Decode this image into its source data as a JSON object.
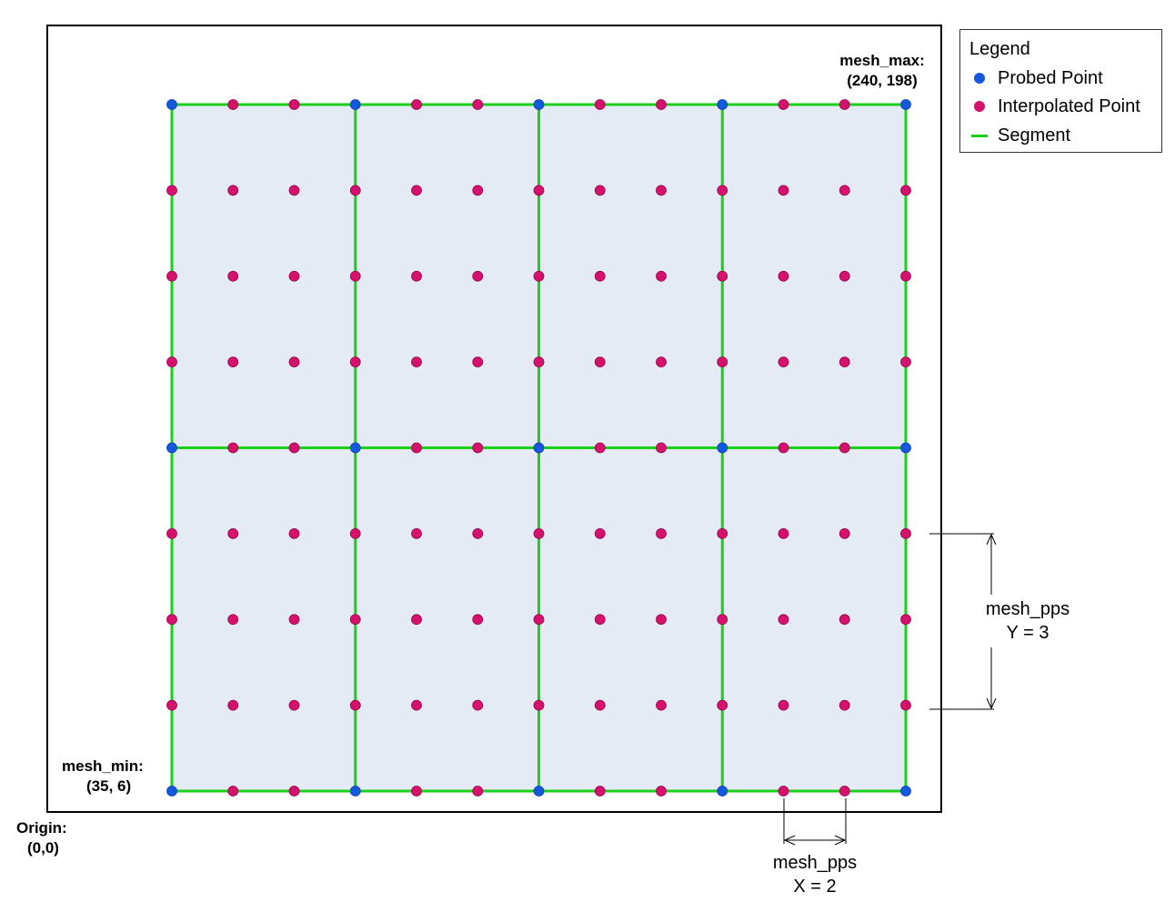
{
  "labels": {
    "mesh_max_title": "mesh_max:",
    "mesh_max_value": "(240, 198)",
    "mesh_min_title": "mesh_min:",
    "mesh_min_value": "(35, 6)",
    "origin_title": "Origin:",
    "origin_value": "(0,0)",
    "pps_y_line1": "mesh_pps",
    "pps_y_line2": "Y = 3",
    "pps_x_line1": "mesh_pps",
    "pps_x_line2": "X = 2"
  },
  "legend": {
    "title": "Legend",
    "items": [
      {
        "label": "Probed Point",
        "kind": "dot",
        "color": "#1558e0"
      },
      {
        "label": "Interpolated Point",
        "kind": "dot",
        "color": "#d6106c"
      },
      {
        "label": "Segment",
        "kind": "line",
        "color": "#1ad01a"
      }
    ]
  },
  "mesh": {
    "probed_cols": 5,
    "probed_rows": 3,
    "pps_x": 2,
    "pps_y": 3,
    "colors": {
      "probed": "#1558e0",
      "interpolated": "#d6106c",
      "segment": "#1ad01a",
      "fill": "#e5ebf5",
      "frame": "#000000"
    }
  }
}
